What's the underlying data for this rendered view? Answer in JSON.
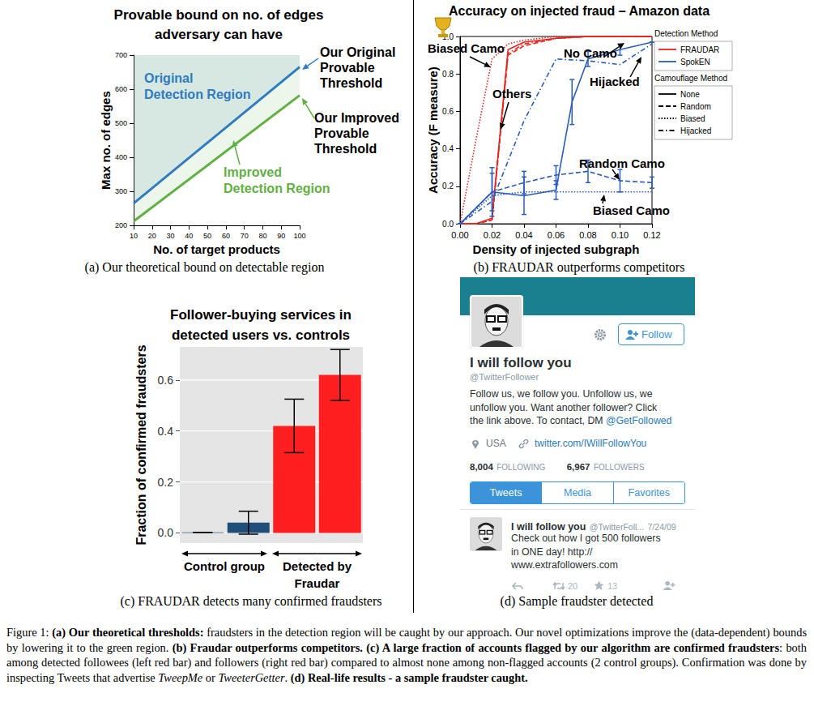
{
  "chart_data": [
    {
      "type": "line",
      "title": "Provable bound on no. of edges\nadversary can have",
      "x_label": "No. of target products",
      "y_label": "Max no. of edges",
      "xlim": [
        10,
        100
      ],
      "xticks": [
        10,
        20,
        30,
        40,
        50,
        60,
        70,
        80,
        90,
        100
      ],
      "ylim": [
        200,
        700
      ],
      "yticks": [
        200,
        300,
        400,
        500,
        600,
        700
      ],
      "series": [
        {
          "name": "Our Original\nProvable\nThreshold",
          "region": "Original\nDetection Region",
          "color": "#2e7bbf",
          "line_style": "solid",
          "x": [
            10,
            100
          ],
          "values": [
            265,
            665
          ]
        },
        {
          "name": "Our Improved\nProvable\nThreshold",
          "region": "Improved\nDetection Region",
          "color": "#62b044",
          "line_style": "solid",
          "x": [
            10,
            100
          ],
          "values": [
            212,
            582
          ]
        }
      ],
      "caption": "(a) Our theoretical bound on detectable region"
    },
    {
      "type": "line",
      "title": "Accuracy on injected fraud – Amazon data",
      "x_label": "Density of injected subgraph",
      "y_label": "Accuracy (F measure)",
      "xlim": [
        0,
        0.12
      ],
      "xticks": [
        {
          "value": 0,
          "label": "0.00"
        },
        {
          "value": 0.02,
          "label": "0.02"
        },
        {
          "value": 0.04,
          "label": "0.04"
        },
        {
          "value": 0.06,
          "label": "0.06"
        },
        {
          "value": 0.08,
          "label": "0.08"
        },
        {
          "value": 0.1,
          "label": "0.10"
        },
        {
          "value": 0.12,
          "label": "0.12"
        }
      ],
      "ylim": [
        0,
        1
      ],
      "yticks": [
        {
          "value": 0,
          "label": "0.0"
        },
        {
          "value": 0.2,
          "label": "0.2"
        },
        {
          "value": 0.4,
          "label": "0.4"
        },
        {
          "value": 0.6,
          "label": "0.6"
        },
        {
          "value": 0.8,
          "label": "0.8"
        },
        {
          "value": 1,
          "label": "1.0"
        }
      ],
      "legend": "right",
      "legend_groups": [
        {
          "title": "Detection Method",
          "entries": [
            {
              "name": "FRAUDAR",
              "color": "#e8251f"
            },
            {
              "name": "SpokEN",
              "color": "#2a5cbd"
            }
          ]
        },
        {
          "title": "Camouflage Method",
          "entries": [
            {
              "name": "None",
              "line_style": "solid"
            },
            {
              "name": "Random",
              "line_style": "dashed"
            },
            {
              "name": "Biased",
              "line_style": "dotted"
            },
            {
              "name": "Hijacked",
              "line_style": "dashdot"
            }
          ]
        }
      ],
      "series": [
        {
          "method": "FRAUDAR",
          "camouflage": "None",
          "color": "#e8251f",
          "line_style": "solid",
          "x": [
            0,
            0.01,
            0.02,
            0.03,
            0.04,
            0.06,
            0.08,
            0.1,
            0.12
          ],
          "values": [
            0,
            0,
            0.03,
            0.93,
            0.97,
            0.99,
            1.0,
            1.0,
            1.0
          ]
        },
        {
          "method": "FRAUDAR",
          "camouflage": "Random",
          "color": "#e8251f",
          "line_style": "dashed",
          "x": [
            0,
            0.01,
            0.02,
            0.03,
            0.04,
            0.06,
            0.08,
            0.1,
            0.12
          ],
          "values": [
            0,
            0,
            0.02,
            0.9,
            0.95,
            0.99,
            1.0,
            1.0,
            1.0
          ]
        },
        {
          "method": "FRAUDAR",
          "camouflage": "Biased",
          "color": "#e8251f",
          "line_style": "dotted",
          "x": [
            0,
            0.01,
            0.02,
            0.03,
            0.04,
            0.06,
            0.08,
            0.1,
            0.12
          ],
          "values": [
            0,
            0.45,
            0.88,
            0.96,
            0.98,
            1.0,
            1.0,
            1.0,
            1.0
          ]
        },
        {
          "method": "FRAUDAR",
          "camouflage": "Hijacked",
          "color": "#e8251f",
          "line_style": "dashdot",
          "x": [
            0,
            0.01,
            0.02,
            0.03,
            0.04,
            0.06,
            0.08,
            0.1,
            0.12
          ],
          "values": [
            0,
            0,
            0.02,
            0.91,
            0.96,
            0.99,
            1.0,
            1.0,
            1.0
          ]
        },
        {
          "method": "SpokEN",
          "camouflage": "None",
          "color": "#2a5cbd",
          "line_style": "solid",
          "x": [
            0,
            0.02,
            0.04,
            0.06,
            0.07,
            0.08,
            0.1,
            0.12
          ],
          "values": [
            0,
            0.17,
            0.15,
            0.18,
            0.65,
            0.88,
            0.93,
            0.97
          ],
          "errors": [
            0,
            0.13,
            0.1,
            0.05,
            0.12,
            0.04,
            0.03,
            0
          ]
        },
        {
          "method": "SpokEN",
          "camouflage": "Random",
          "color": "#2a5cbd",
          "line_style": "dashed",
          "x": [
            0,
            0.02,
            0.04,
            0.06,
            0.08,
            0.1,
            0.12
          ],
          "values": [
            0,
            0.17,
            0.22,
            0.26,
            0.28,
            0.23,
            0.22
          ],
          "errors": [
            0,
            0.1,
            0.06,
            0.05,
            0.06,
            0.06,
            0.03
          ]
        },
        {
          "method": "SpokEN",
          "camouflage": "Biased",
          "color": "#2a5cbd",
          "line_style": "dotted",
          "x": [
            0,
            0.02,
            0.04,
            0.06,
            0.08,
            0.1,
            0.12
          ],
          "values": [
            0,
            0.15,
            0.17,
            0.17,
            0.17,
            0.17,
            0.17
          ]
        },
        {
          "method": "SpokEN",
          "camouflage": "Hijacked",
          "color": "#2a5cbd",
          "line_style": "dashdot",
          "x": [
            0,
            0.02,
            0.04,
            0.06,
            0.08,
            0.1,
            0.12
          ],
          "values": [
            0,
            0.12,
            0.55,
            0.88,
            0.87,
            0.85,
            0.96
          ]
        }
      ],
      "annotations": [
        "Biased Camo",
        "No Camo",
        "Hijacked",
        "Others",
        "Random Camo",
        "Biased Camo"
      ],
      "caption": "(b) FRAUDAR outperforms competitors"
    },
    {
      "type": "bar",
      "title": "Follower-buying services in\ndetected users vs. controls",
      "y_label": "Fraction of confirmed fraudsters",
      "categories": [
        null,
        null,
        null,
        null
      ],
      "values": [
        0.002,
        0.04,
        0.42,
        0.62
      ],
      "errors": [
        0,
        0.045,
        0.105,
        0.1
      ],
      "colors": [
        "#1f4e79",
        "#1f4e79",
        "#ff1f1f",
        "#ff1f1f"
      ],
      "ylim": [
        -0.04,
        0.73
      ],
      "yticks": [
        {
          "value": 0,
          "label": "0.0"
        },
        {
          "value": 0.2,
          "label": "0.2"
        },
        {
          "value": 0.4,
          "label": "0.4"
        },
        {
          "value": 0.6,
          "label": "0.6"
        }
      ],
      "grid": true,
      "group_labels": [
        "Control group",
        "Detected by\nFraudar"
      ],
      "caption": "(c) FRAUDAR detects many confirmed fraudsters"
    }
  ],
  "screenshot": {
    "name": "I will follow you",
    "handle": "@TwitterFollower",
    "follow_button": "Follow",
    "bio": "Follow us, we follow you. Unfollow us, we\nunfollow you. Want another follower? Click\nthe link above. To contact, DM ",
    "bio_mention": "@GetFollowed",
    "location": "USA",
    "url": "twitter.com/IWillFollowYou",
    "following": "8,004",
    "following_label": "FOLLOWING",
    "followers": "6,967",
    "followers_label": "FOLLOWERS",
    "tabs": [
      "Tweets",
      "Media",
      "Favorites"
    ],
    "tweet": {
      "name": "I will follow you",
      "handle": "@TwitterFoll...",
      "date": "7/24/09",
      "text": "Check out how I got 500 followers\nin ONE day! http://\nwww.extrafollowers.com",
      "retweets": 20,
      "favorites": 13
    },
    "caption": "(d) Sample fraudster detected"
  },
  "figure_caption": [
    {
      "text": "Figure 1:  "
    },
    {
      "text": "(a) Our theoretical thresholds:",
      "bold": true
    },
    {
      "text": " fraudsters in the detection region will be caught by our approach.  Our novel optimizations improve the (data-dependent) bounds by lowering it to the green region. "
    },
    {
      "text": "(b) Fraudar outperforms competitors. (c) A large fraction of accounts flagged by our algorithm are confirmed fraudsters",
      "bold": true
    },
    {
      "text": ": both among detected followees (left red bar) and followers (right red bar) compared to almost none among non-flagged accounts (2 control groups). Confirmation was done by inspecting Tweets that advertise "
    },
    {
      "text": "TweepMe",
      "italic": true
    },
    {
      "text": " or "
    },
    {
      "text": "TweeterGetter",
      "italic": true
    },
    {
      "text": ". "
    },
    {
      "text": "(d) Real-life results - a sample fraudster caught.",
      "bold": true
    }
  ]
}
